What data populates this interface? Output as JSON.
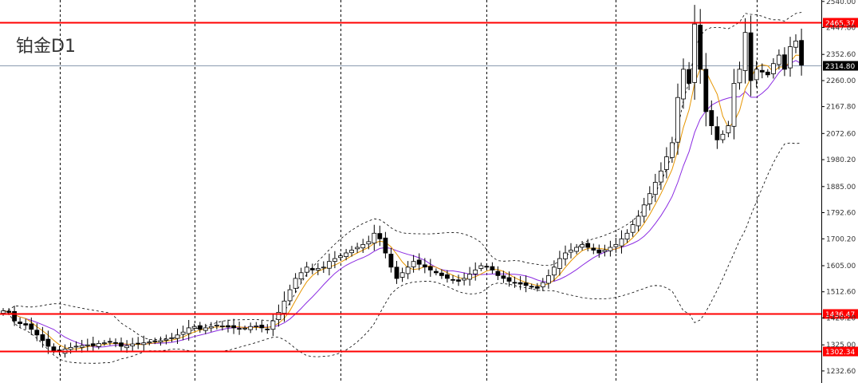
{
  "chart_data": {
    "type": "candlestick",
    "title": "铂金D1",
    "y_axis": {
      "ylim": [
        1190,
        2545
      ],
      "ticks": [
        "2540.00",
        "2447.80",
        "2352.60",
        "2260.00",
        "2167.80",
        "2072.60",
        "1980.20",
        "1885.00",
        "1792.60",
        "1700.20",
        "1605.00",
        "1512.60",
        "1420.20",
        "1325.00",
        "1232.60"
      ]
    },
    "levels": [
      {
        "label": "2465.37",
        "value": 2465.37,
        "color": "#ff0000"
      },
      {
        "label": "1436.47",
        "value": 1436.47,
        "color": "#ff0000"
      },
      {
        "label": "1302.34",
        "value": 1302.34,
        "color": "#ff0000"
      }
    ],
    "current_price": {
      "label": "2314.80",
      "value": 2314.8
    },
    "vertical_grid_at_candle": [
      10,
      34,
      60,
      86,
      109,
      134
    ],
    "colors": {
      "bull": "#ffffff",
      "bear": "#000000",
      "ma_fast": "#e69500",
      "ma_slow": "#8b2be2",
      "band": "#000000"
    },
    "closes": [
      1445,
      1440,
      1410,
      1400,
      1395,
      1380,
      1360,
      1340,
      1320,
      1305,
      1300,
      1310,
      1316,
      1320,
      1322,
      1325,
      1322,
      1330,
      1332,
      1335,
      1330,
      1320,
      1322,
      1328,
      1330,
      1332,
      1335,
      1338,
      1340,
      1345,
      1350,
      1360,
      1370,
      1385,
      1390,
      1380,
      1385,
      1390,
      1395,
      1392,
      1388,
      1385,
      1382,
      1384,
      1390,
      1392,
      1385,
      1380,
      1410,
      1440,
      1480,
      1520,
      1560,
      1580,
      1600,
      1590,
      1595,
      1600,
      1620,
      1630,
      1640,
      1650,
      1660,
      1670,
      1680,
      1690,
      1720,
      1700,
      1650,
      1600,
      1560,
      1580,
      1600,
      1620,
      1610,
      1600,
      1590,
      1580,
      1570,
      1560,
      1555,
      1550,
      1560,
      1575,
      1590,
      1605,
      1600,
      1590,
      1570,
      1560,
      1550,
      1545,
      1540,
      1535,
      1530,
      1525,
      1545,
      1570,
      1600,
      1630,
      1650,
      1660,
      1670,
      1680,
      1670,
      1660,
      1650,
      1660,
      1670,
      1680,
      1700,
      1720,
      1750,
      1780,
      1820,
      1860,
      1900,
      1940,
      1990,
      2040,
      2200,
      2300,
      2250,
      2460,
      2300,
      2150,
      2100,
      2050,
      2070,
      2100,
      2250,
      2300,
      2430,
      2260,
      2300,
      2290,
      2280,
      2320,
      2350,
      2300,
      2380,
      2400,
      2315
    ]
  }
}
